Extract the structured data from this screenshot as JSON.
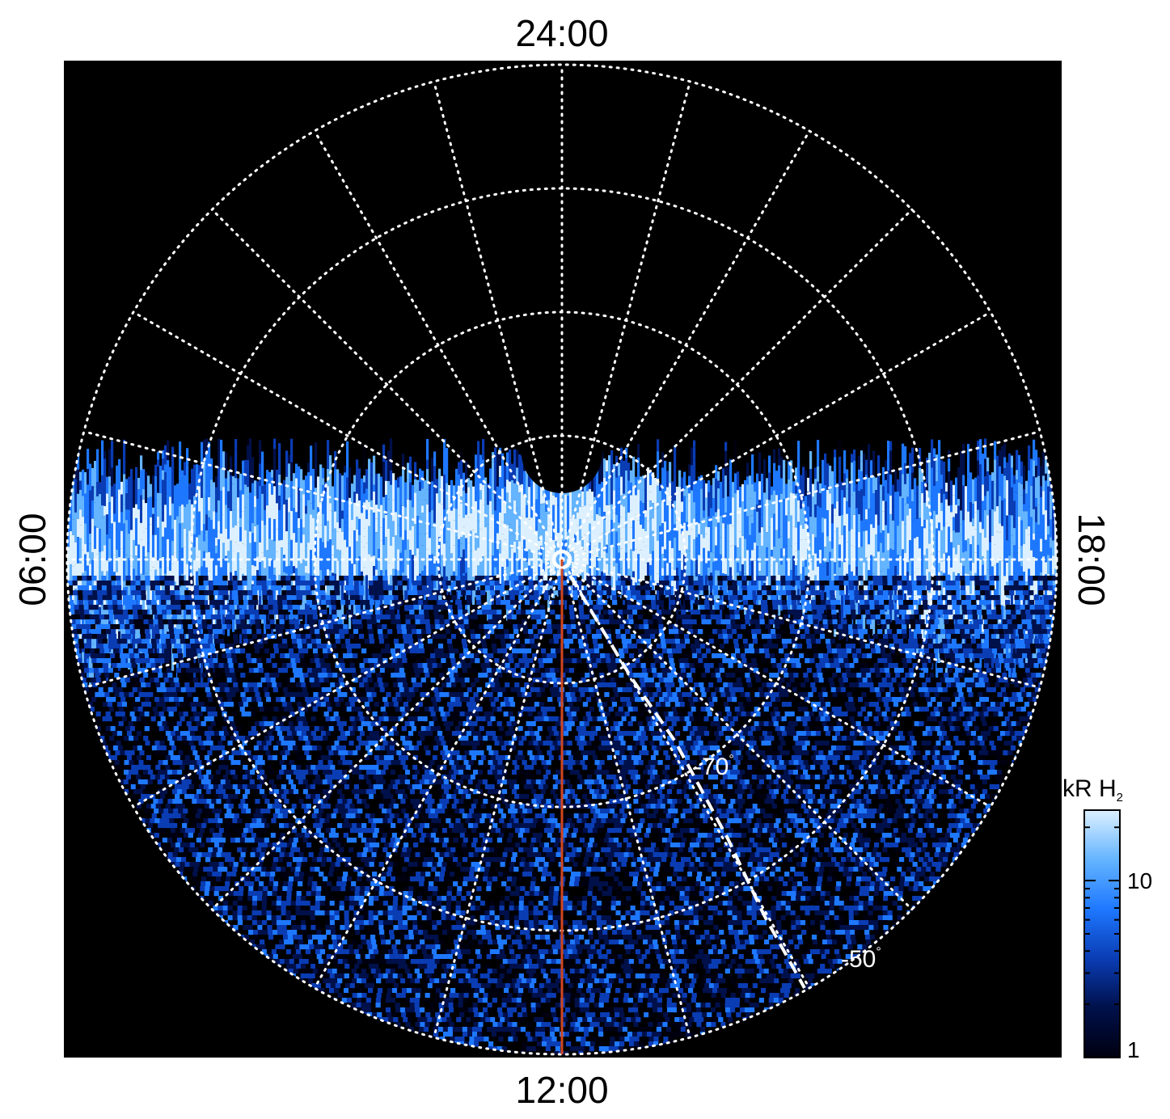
{
  "chart_data": {
    "type": "heatmap",
    "projection": "polar",
    "local_time_labels": {
      "top": "24:00",
      "bottom": "12:00",
      "left": "06:00",
      "right": "18:00"
    },
    "latitude_grid_deg": [
      -80,
      -70,
      -60,
      -50
    ],
    "latitude_labels": [
      {
        "text": "-70",
        "degree": "°",
        "lat": -70
      },
      {
        "text": "-50",
        "degree": "°",
        "lat": -50
      }
    ],
    "meridian_step_hours": 1,
    "grid": true,
    "highlight_meridian": {
      "local_time": "12:00",
      "color": "#d2461e"
    },
    "dashed_track_color": "#ffffff",
    "colorbar": {
      "title_main": "kR H",
      "title_sub": "2",
      "scale": "log",
      "range": [
        1,
        25
      ],
      "tick_labels": [
        {
          "text": "10",
          "value": 10
        },
        {
          "text": "1",
          "value": 1
        }
      ],
      "colors": [
        "#000010",
        "#00104a",
        "#0a3cb4",
        "#1e78ff",
        "#64b4ff",
        "#dcf0ff"
      ]
    },
    "description_colors": {
      "background": "#000000",
      "grid": "#ffffff"
    }
  }
}
